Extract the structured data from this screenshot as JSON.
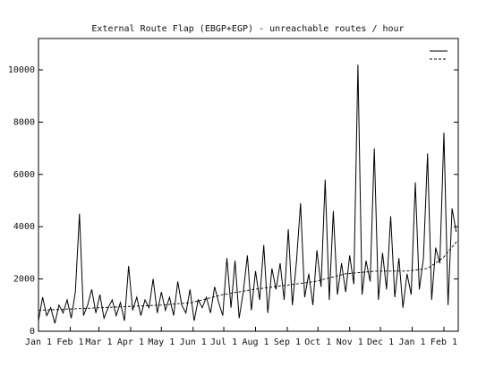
{
  "chart_data": {
    "type": "line",
    "title": "External Route Flap (EBGP+EGP) - unreachable routes / hour",
    "xlim": [
      0,
      410
    ],
    "xticks": [
      {
        "value": 0,
        "label": "Jan 1"
      },
      {
        "value": 31,
        "label": "Feb 1"
      },
      {
        "value": 59,
        "label": "Mar 1"
      },
      {
        "value": 90,
        "label": "Apr 1"
      },
      {
        "value": 120,
        "label": "May 1"
      },
      {
        "value": 151,
        "label": "Jun 1"
      },
      {
        "value": 181,
        "label": "Jul 1"
      },
      {
        "value": 212,
        "label": "Aug 1"
      },
      {
        "value": 243,
        "label": "Sep 1"
      },
      {
        "value": 273,
        "label": "Oct 1"
      },
      {
        "value": 304,
        "label": "Nov 1"
      },
      {
        "value": 334,
        "label": "Dec 1"
      },
      {
        "value": 365,
        "label": "Jan 1"
      },
      {
        "value": 396,
        "label": "Feb 1"
      }
    ],
    "ylim": [
      0,
      11200
    ],
    "yticks": [
      0,
      2000,
      4000,
      6000,
      8000,
      10000
    ],
    "legend": "upper right",
    "series": [
      {
        "color": "#000000",
        "dash": false,
        "x": [
          0,
          4,
          8,
          12,
          16,
          20,
          24,
          28,
          32,
          36,
          40,
          44,
          48,
          52,
          56,
          60,
          64,
          68,
          72,
          76,
          80,
          84,
          88,
          92,
          96,
          100,
          104,
          108,
          112,
          116,
          120,
          124,
          128,
          132,
          136,
          140,
          144,
          148,
          152,
          156,
          160,
          164,
          168,
          172,
          176,
          180,
          184,
          188,
          192,
          196,
          200,
          204,
          208,
          212,
          216,
          220,
          224,
          228,
          232,
          236,
          240,
          244,
          248,
          252,
          256,
          260,
          264,
          268,
          272,
          276,
          280,
          284,
          288,
          292,
          296,
          300,
          304,
          308,
          312,
          316,
          320,
          324,
          328,
          332,
          336,
          340,
          344,
          348,
          352,
          356,
          360,
          364,
          368,
          372,
          376,
          380,
          384,
          388,
          392,
          396,
          400,
          404,
          408
        ],
        "values": [
          400,
          1300,
          600,
          900,
          300,
          1000,
          700,
          1200,
          500,
          1500,
          4500,
          600,
          1000,
          1600,
          700,
          1400,
          500,
          900,
          1200,
          600,
          1100,
          400,
          2500,
          800,
          1300,
          600,
          1200,
          900,
          2000,
          700,
          1500,
          800,
          1300,
          600,
          1900,
          1000,
          700,
          1600,
          400,
          1200,
          900,
          1300,
          700,
          1700,
          1100,
          600,
          2800,
          900,
          2700,
          500,
          1500,
          2900,
          800,
          2300,
          1200,
          3300,
          700,
          2400,
          1600,
          2600,
          1200,
          3900,
          1000,
          2700,
          4900,
          1300,
          2200,
          1000,
          3100,
          1700,
          5800,
          1200,
          4600,
          1400,
          2600,
          1500,
          2900,
          1800,
          10200,
          1400,
          2700,
          1900,
          7000,
          1200,
          3000,
          1600,
          4400,
          1300,
          2800,
          900,
          2200,
          1400,
          5700,
          1600,
          2800,
          6800,
          1200,
          3200,
          2600,
          7600,
          1000,
          4700,
          3800
        ]
      },
      {
        "color": "#000000",
        "dash": true,
        "x": [
          0,
          60,
          120,
          150,
          180,
          210,
          240,
          270,
          300,
          330,
          360,
          380,
          395,
          410
        ],
        "values": [
          800,
          900,
          1000,
          1100,
          1400,
          1600,
          1750,
          1900,
          2200,
          2300,
          2300,
          2400,
          2800,
          3500
        ]
      }
    ]
  }
}
